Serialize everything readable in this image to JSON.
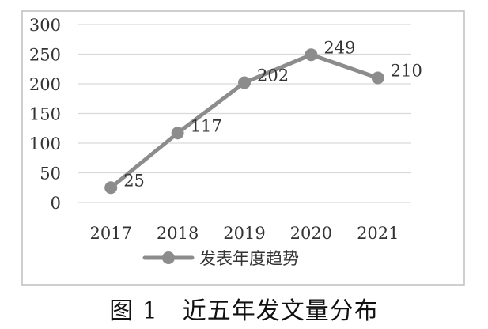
{
  "figure": {
    "caption": "图 1　近五年发文量分布"
  },
  "chart_data": {
    "type": "line",
    "title": "",
    "xlabel": "",
    "ylabel": "",
    "categories": [
      "2017",
      "2018",
      "2019",
      "2020",
      "2021"
    ],
    "series": [
      {
        "name": "发表年度趋势",
        "values": [
          25,
          117,
          202,
          249,
          210
        ],
        "color": "#8c8c8c",
        "data_labels": [
          "25",
          "117",
          "202",
          "249",
          "210"
        ]
      }
    ],
    "ylim": [
      0,
      300
    ],
    "yticks": [
      "0",
      "50",
      "100",
      "150",
      "200",
      "250",
      "300"
    ],
    "grid": "horizontal",
    "legend": "bottom",
    "colors": {
      "line": "#8c8c8c",
      "grid": "#d9d9d9",
      "frame": "#bfbfbf"
    }
  }
}
